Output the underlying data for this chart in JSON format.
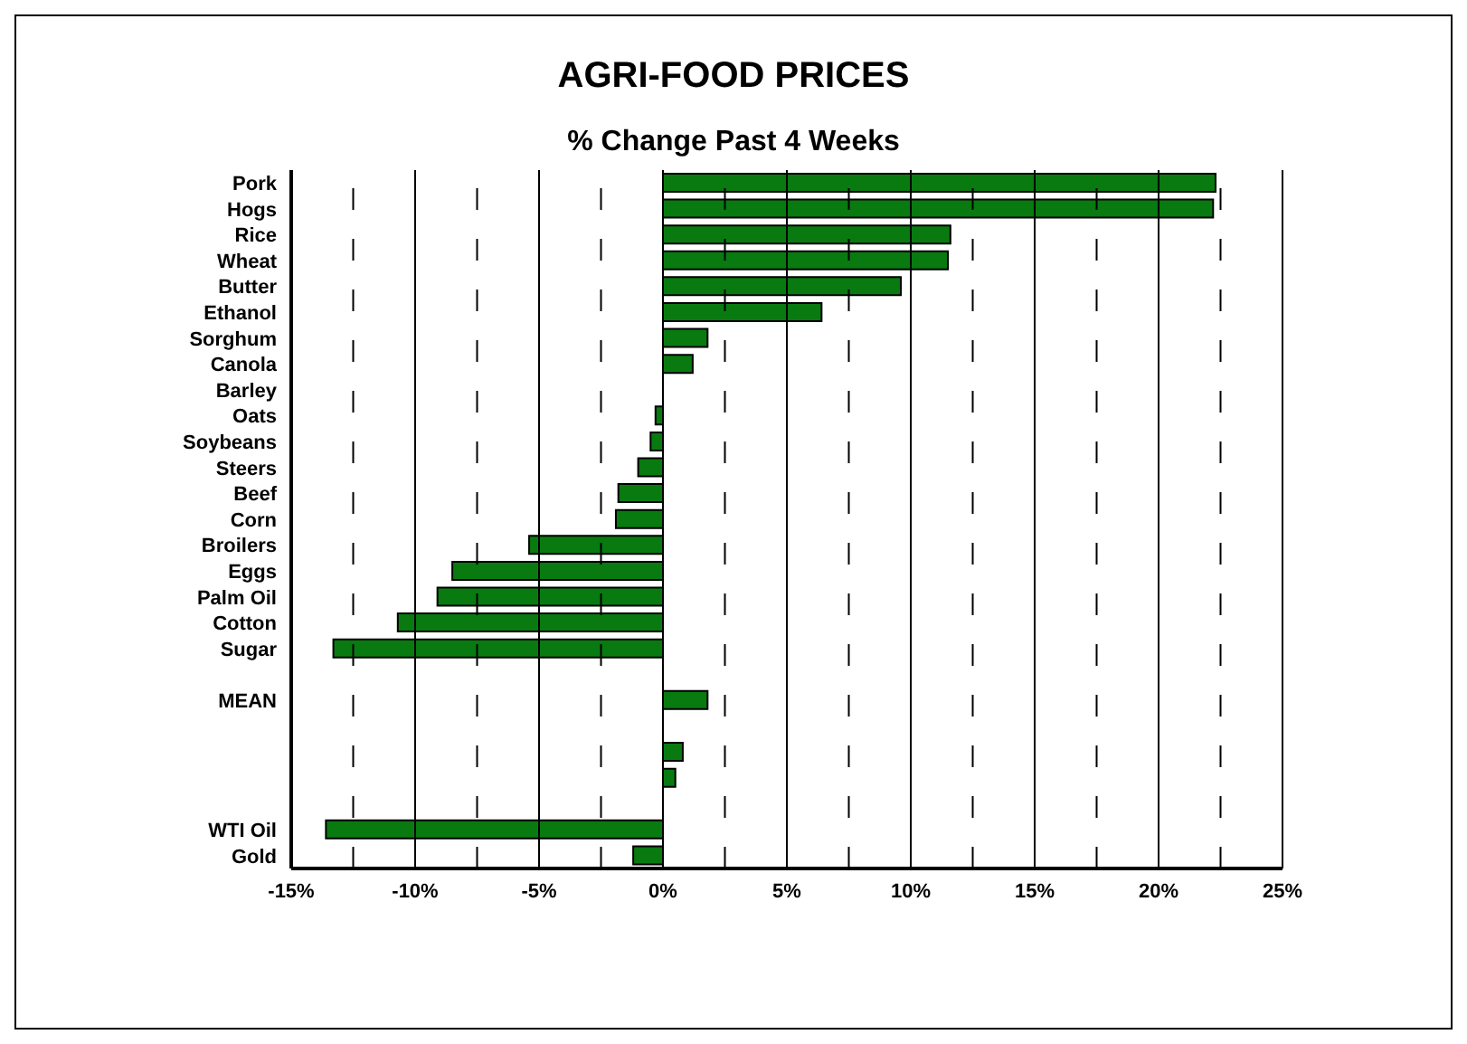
{
  "chart_data": {
    "type": "bar",
    "orientation": "horizontal",
    "title": "AGRI-FOOD PRICES",
    "subtitle": "% Change Past 4 Weeks",
    "categories": [
      "Pork",
      "Hogs",
      "Rice",
      "Wheat",
      "Butter",
      "Ethanol",
      "Sorghum",
      "Canola",
      "Barley",
      "Oats",
      "Soybeans",
      "Steers",
      "Beef",
      "Corn",
      "Broilers",
      "Eggs",
      "Palm Oil",
      "Cotton",
      "Sugar",
      null,
      "MEAN",
      null,
      null,
      null,
      null,
      "WTI Oil",
      "Gold"
    ],
    "values": [
      22.3,
      22.2,
      11.6,
      11.5,
      9.6,
      6.4,
      1.8,
      1.2,
      0,
      -0.3,
      -0.5,
      -1.0,
      -1.8,
      -1.9,
      -5.4,
      -8.5,
      -9.1,
      -10.7,
      -13.3,
      null,
      1.8,
      null,
      0.8,
      0.5,
      null,
      -13.6,
      -1.2
    ],
    "color": "#087a10",
    "xlim": [
      -15,
      25
    ],
    "xticks": [
      {
        "value": -15,
        "label": "-15%"
      },
      {
        "value": -12.5,
        "label": null
      },
      {
        "value": -10,
        "label": "-10%"
      },
      {
        "value": -7.5,
        "label": null
      },
      {
        "value": -5,
        "label": "-5%"
      },
      {
        "value": -2.5,
        "label": null
      },
      {
        "value": 0,
        "label": "0%"
      },
      {
        "value": 2.5,
        "label": null
      },
      {
        "value": 5,
        "label": "5%"
      },
      {
        "value": 7.5,
        "label": null
      },
      {
        "value": 10,
        "label": "10%"
      },
      {
        "value": 12.5,
        "label": null
      },
      {
        "value": 15,
        "label": "15%"
      },
      {
        "value": 17.5,
        "label": null
      },
      {
        "value": 20,
        "label": "20%"
      },
      {
        "value": 22.5,
        "label": null
      },
      {
        "value": 25,
        "label": "25%"
      }
    ],
    "grid": "x"
  }
}
